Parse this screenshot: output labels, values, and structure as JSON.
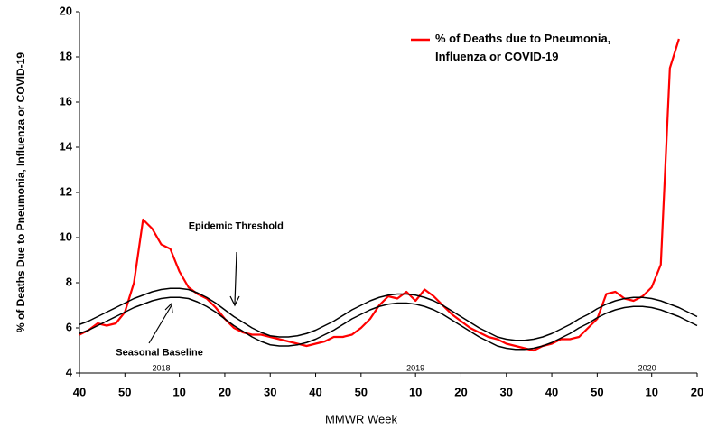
{
  "chart_data": {
    "type": "line",
    "y_label": "% of Deaths Due to Pneumonia, Influenza or  COVID-19",
    "x_label": "MMWR Week",
    "x": [
      0,
      2,
      4,
      6,
      8,
      10,
      12,
      14,
      16,
      18,
      20,
      22,
      24,
      26,
      28,
      30,
      32,
      34,
      36,
      38,
      40,
      42,
      44,
      46,
      48,
      50,
      52,
      54,
      56,
      58,
      60,
      62,
      64,
      66,
      68,
      70,
      72,
      74,
      76,
      78,
      80,
      82,
      84,
      86,
      88,
      90,
      92,
      94,
      96,
      98,
      100,
      102,
      104,
      106,
      108,
      110,
      112,
      114,
      116,
      118,
      120,
      122,
      124,
      126,
      128,
      130,
      132,
      134,
      136
    ],
    "series": [
      {
        "name": "% of Deaths due to Pneumonia, Influenza or COVID-19",
        "color": "#ff0000",
        "width": 2.2,
        "legend": true,
        "values": [
          5.7,
          5.9,
          6.2,
          6.1,
          6.2,
          6.7,
          8.0,
          10.8,
          10.4,
          9.7,
          9.5,
          8.5,
          7.8,
          7.5,
          7.3,
          6.9,
          6.4,
          6.0,
          5.8,
          5.7,
          5.7,
          5.6,
          5.5,
          5.4,
          5.3,
          5.2,
          5.3,
          5.4,
          5.6,
          5.6,
          5.7,
          6.0,
          6.4,
          7.0,
          7.4,
          7.3,
          7.6,
          7.2,
          7.7,
          7.4,
          7.0,
          6.6,
          6.3,
          6.0,
          5.8,
          5.6,
          5.5,
          5.3,
          5.2,
          5.1,
          5.0,
          5.2,
          5.3,
          5.5,
          5.5,
          5.6,
          6.0,
          6.4,
          7.5,
          7.6,
          7.3,
          7.2,
          7.4,
          7.8,
          8.8,
          17.5,
          18.8,
          null,
          null
        ]
      },
      {
        "name": "Seasonal Baseline",
        "color": "#000000",
        "width": 1.5,
        "legend": false,
        "values": [
          5.75,
          5.9,
          6.1,
          6.3,
          6.5,
          6.7,
          6.9,
          7.05,
          7.2,
          7.3,
          7.35,
          7.35,
          7.3,
          7.15,
          6.95,
          6.7,
          6.4,
          6.1,
          5.85,
          5.6,
          5.4,
          5.25,
          5.2,
          5.2,
          5.25,
          5.35,
          5.5,
          5.7,
          5.9,
          6.15,
          6.4,
          6.6,
          6.8,
          6.95,
          7.05,
          7.1,
          7.1,
          7.05,
          6.95,
          6.8,
          6.6,
          6.35,
          6.1,
          5.85,
          5.6,
          5.4,
          5.2,
          5.1,
          5.05,
          5.05,
          5.1,
          5.2,
          5.35,
          5.55,
          5.75,
          6.0,
          6.2,
          6.45,
          6.65,
          6.8,
          6.9,
          6.95,
          6.95,
          6.9,
          6.8,
          6.65,
          6.5,
          6.3,
          6.1
        ]
      },
      {
        "name": "Epidemic Threshold",
        "color": "#000000",
        "width": 1.5,
        "legend": false,
        "values": [
          6.15,
          6.3,
          6.5,
          6.7,
          6.9,
          7.1,
          7.3,
          7.45,
          7.6,
          7.7,
          7.75,
          7.75,
          7.7,
          7.55,
          7.35,
          7.1,
          6.8,
          6.5,
          6.25,
          6.0,
          5.8,
          5.65,
          5.6,
          5.6,
          5.65,
          5.75,
          5.9,
          6.1,
          6.3,
          6.55,
          6.8,
          7.0,
          7.2,
          7.35,
          7.45,
          7.5,
          7.5,
          7.45,
          7.35,
          7.2,
          7.0,
          6.75,
          6.5,
          6.25,
          6.0,
          5.8,
          5.6,
          5.5,
          5.45,
          5.45,
          5.5,
          5.6,
          5.75,
          5.95,
          6.15,
          6.4,
          6.6,
          6.85,
          7.05,
          7.2,
          7.3,
          7.35,
          7.35,
          7.3,
          7.2,
          7.05,
          6.9,
          6.7,
          6.5
        ]
      }
    ],
    "annotations": [
      {
        "text": "Epidemic Threshold",
        "x": 24,
        "y": 10.5
      },
      {
        "text": "Seasonal Baseline",
        "x": 8,
        "y": 4.9
      },
      {
        "text": "2018",
        "x": 16,
        "y": 4.2
      },
      {
        "text": "2019",
        "x": 72,
        "y": 4.2
      },
      {
        "text": "2020",
        "x": 123,
        "y": 4.2
      }
    ],
    "xlim": [
      0,
      136
    ],
    "xticks": [
      {
        "value": 0,
        "label": "40"
      },
      {
        "value": 10,
        "label": "50"
      },
      {
        "value": 22,
        "label": "10"
      },
      {
        "value": 32,
        "label": "20"
      },
      {
        "value": 42,
        "label": "30"
      },
      {
        "value": 52,
        "label": "40"
      },
      {
        "value": 62,
        "label": "50"
      },
      {
        "value": 74,
        "label": "10"
      },
      {
        "value": 84,
        "label": "20"
      },
      {
        "value": 94,
        "label": "30"
      },
      {
        "value": 104,
        "label": "40"
      },
      {
        "value": 114,
        "label": "50"
      },
      {
        "value": 126,
        "label": "10"
      },
      {
        "value": 136,
        "label": "20"
      }
    ],
    "ylim": [
      4,
      20
    ],
    "yticks": [
      4,
      6,
      8,
      10,
      12,
      14,
      16,
      18,
      20
    ],
    "grid": false,
    "legend_position": "upper right"
  }
}
